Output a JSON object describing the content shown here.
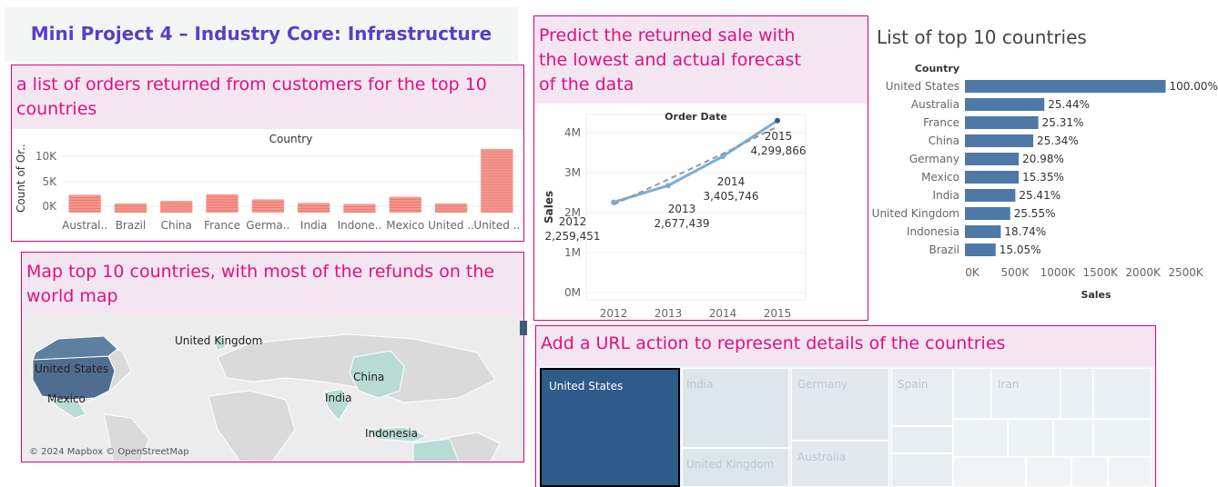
{
  "header": {
    "title": "Mini Project 4 – Industry Core: Infrastructure"
  },
  "orders_panel": {
    "heading": "a list of orders returned from customers for the top 10 countries",
    "chart_data": {
      "type": "bar",
      "title": "Country",
      "ylabel": "Count of Or..",
      "yticks": [
        "10K",
        "5K",
        "0K"
      ],
      "categories": [
        "Austral..",
        "Brazil",
        "China",
        "France",
        "Germa..",
        "India",
        "Indone..",
        "Mexico",
        "United ..",
        "United .."
      ],
      "values": [
        3500,
        1800,
        2300,
        3600,
        2600,
        1900,
        1700,
        3100,
        1800,
        12500
      ],
      "ylim": [
        0,
        12500
      ],
      "color": "#f4978e"
    }
  },
  "forecast_panel": {
    "heading": "Predict the returned sale with the lowest and actual forecast of the data",
    "chart_data": {
      "type": "line",
      "title": "Order Date",
      "ylabel": "Sales",
      "yticks": [
        "4M",
        "3M",
        "2M",
        "1M",
        "0M"
      ],
      "x": [
        "2012",
        "2013",
        "2014",
        "2015"
      ],
      "series": [
        {
          "values": [
            2259451,
            2677439,
            3405746,
            4299866
          ],
          "color": "#7aaed6"
        },
        {
          "values": [
            2200000,
            2830000,
            3470000,
            4150000
          ],
          "color": "#999999",
          "style": "dashed"
        }
      ],
      "point_labels": [
        {
          "year": "2012",
          "value": "2,259,451"
        },
        {
          "year": "2013",
          "value": "2,677,439"
        },
        {
          "year": "2014",
          "value": "3,405,746"
        },
        {
          "year": "2015",
          "value": "4,299,866"
        }
      ],
      "ylim": [
        0,
        4500000
      ]
    }
  },
  "top10_panel": {
    "title": "List of top 10 countries",
    "chart_data": {
      "type": "bar",
      "orientation": "horizontal",
      "category_header": "Country",
      "xlabel": "Sales",
      "xticks": [
        "0K",
        "500K",
        "1000K",
        "1500K",
        "2000K",
        "2500K"
      ],
      "xlim": [
        0,
        2750000
      ],
      "categories": [
        "United States",
        "Australia",
        "France",
        "China",
        "Germany",
        "Mexico",
        "India",
        "United Kingdom",
        "Indonesia",
        "Brazil"
      ],
      "values": [
        2350000,
        930000,
        860000,
        800000,
        630000,
        630000,
        590000,
        530000,
        420000,
        360000
      ],
      "labels": [
        "100.00%",
        "25.44%",
        "25.31%",
        "25.34%",
        "20.98%",
        "15.35%",
        "25.41%",
        "25.55%",
        "18.74%",
        "15.05%"
      ],
      "color": "#4e79a7"
    }
  },
  "map_panel": {
    "heading": "Map top 10 countries, with most of the refunds on the world map",
    "labels": [
      "United Kingdom",
      "United States",
      "Mexico",
      "China",
      "India",
      "Indonesia"
    ],
    "attribution": "© 2024 Mapbox © OpenStreetMap"
  },
  "treemap_panel": {
    "heading": "Add a URL action to represent details of the countries",
    "cells": [
      "United States",
      "India",
      "Germany",
      "Spain",
      "Iran",
      "United Kingdom",
      "Australia"
    ]
  }
}
